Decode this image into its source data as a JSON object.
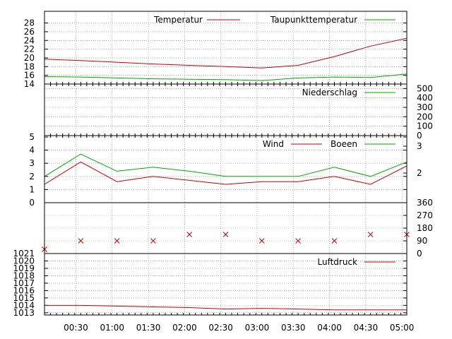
{
  "chart_data": [
    {
      "type": "line",
      "panel": "temperature",
      "x": [
        "00:04",
        "00:34",
        "01:04",
        "01:34",
        "02:04",
        "02:34",
        "03:04",
        "03:34",
        "04:04",
        "04:34",
        "05:04"
      ],
      "series": [
        {
          "name": "Temperatur",
          "color": "#cc0000",
          "values": [
            19.7,
            19.4,
            19.0,
            18.6,
            18.3,
            18.0,
            17.7,
            18.3,
            20.3,
            22.7,
            24.5
          ]
        },
        {
          "name": "Taupunkttemperatur",
          "color": "#00aa00",
          "values": [
            15.7,
            15.6,
            15.4,
            15.2,
            15.1,
            15.0,
            14.8,
            15.4,
            15.6,
            15.5,
            16.3
          ]
        }
      ],
      "yticks": [
        "14",
        "16",
        "18",
        "20",
        "22",
        "24",
        "26",
        "28"
      ],
      "ylim": [
        14,
        29
      ],
      "legend": "top-right",
      "grid": true
    },
    {
      "type": "line",
      "panel": "precipitation",
      "series": [
        {
          "name": "Niederschlag",
          "color": "#00aa00",
          "values": [
            0,
            0,
            0,
            0,
            0,
            0,
            0,
            0,
            0,
            0,
            0
          ]
        }
      ],
      "yticks_right": [
        "0",
        "100",
        "200",
        "300",
        "400",
        "500"
      ],
      "ylim": [
        0,
        540
      ],
      "legend": "top-right",
      "grid": true
    },
    {
      "type": "line",
      "panel": "wind",
      "series": [
        {
          "name": "Wind",
          "color": "#cc0000",
          "values": [
            1.4,
            3.1,
            1.6,
            2.0,
            1.7,
            1.4,
            1.6,
            1.6,
            2.0,
            1.4,
            2.8
          ]
        },
        {
          "name": "Boeen",
          "color": "#00aa00",
          "values": [
            2.0,
            3.7,
            2.4,
            2.7,
            2.4,
            2.0,
            2.0,
            2.0,
            2.7,
            2.0,
            3.1
          ]
        }
      ],
      "yticks": [
        "0",
        "1",
        "2",
        "3",
        "4",
        "5"
      ],
      "yticks_right": [
        "2",
        "3"
      ],
      "ylim": [
        0,
        5
      ],
      "legend": "top-right",
      "grid": true
    },
    {
      "type": "scatter",
      "panel": "wind-direction",
      "series": [
        {
          "name": "",
          "color": "#cc0000",
          "values": [
            30,
            90,
            90,
            90,
            135,
            135,
            90,
            90,
            90,
            135,
            135
          ]
        }
      ],
      "yticks_right": [
        "0",
        "90",
        "180",
        "270",
        "360"
      ],
      "ylim": [
        0,
        360
      ],
      "grid": true
    },
    {
      "type": "line",
      "panel": "pressure",
      "series": [
        {
          "name": "Luftdruck",
          "color": "#cc0000",
          "values": [
            1014.0,
            1014.0,
            1013.9,
            1013.8,
            1013.7,
            1013.5,
            1013.6,
            1013.5,
            1013.4,
            1013.4,
            1013.4
          ]
        }
      ],
      "yticks": [
        "1013",
        "1014",
        "1015",
        "1016",
        "1017",
        "1018",
        "1019",
        "1020",
        "1021"
      ],
      "ylim": [
        1012.7,
        1021
      ],
      "legend": "top-right",
      "grid": true
    }
  ],
  "x_axis": {
    "ticks": [
      "00:30",
      "01:00",
      "01:30",
      "02:00",
      "02:30",
      "03:00",
      "03:30",
      "04:00",
      "04:30",
      "05:00"
    ]
  }
}
